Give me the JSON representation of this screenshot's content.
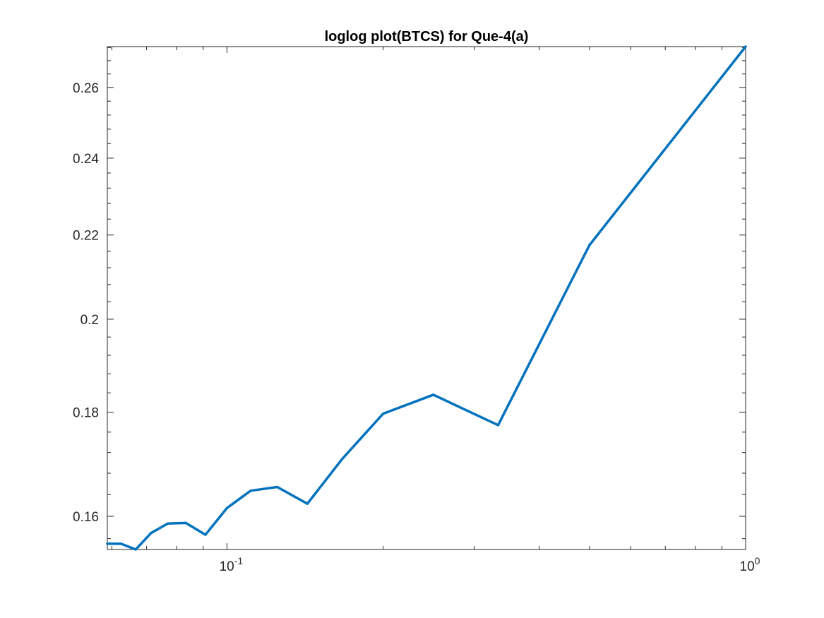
{
  "chart_data": {
    "type": "line",
    "title": "loglog plot(BTCS) for Que-4(a)",
    "xlabel": "",
    "ylabel": "",
    "xscale": "log",
    "yscale": "log",
    "xlim": [
      0.0588,
      1.0
    ],
    "ylim": [
      0.1541,
      0.2723
    ],
    "grid": false,
    "x_ticks": [
      {
        "value": 0.1,
        "base": "10",
        "exp": "-1"
      },
      {
        "value": 1.0,
        "base": "10",
        "exp": "0"
      }
    ],
    "y_ticks": [
      {
        "value": 0.16,
        "label": "0.16"
      },
      {
        "value": 0.18,
        "label": "0.18"
      },
      {
        "value": 0.2,
        "label": "0.2"
      },
      {
        "value": 0.22,
        "label": "0.22"
      },
      {
        "value": 0.24,
        "label": "0.24"
      },
      {
        "value": 0.26,
        "label": "0.26"
      }
    ],
    "series": [
      {
        "color": "#0072BD",
        "x": [
          0.0588,
          0.0625,
          0.0667,
          0.0714,
          0.0769,
          0.0833,
          0.0909,
          0.1,
          0.1111,
          0.125,
          0.1429,
          0.1667,
          0.2,
          0.25,
          0.3333,
          0.5,
          1.0
        ],
        "y": [
          0.1551,
          0.1551,
          0.1541,
          0.157,
          0.1587,
          0.1588,
          0.1567,
          0.1615,
          0.1647,
          0.1654,
          0.1623,
          0.1707,
          0.1797,
          0.1836,
          0.1774,
          0.2175,
          0.2723
        ]
      }
    ]
  }
}
